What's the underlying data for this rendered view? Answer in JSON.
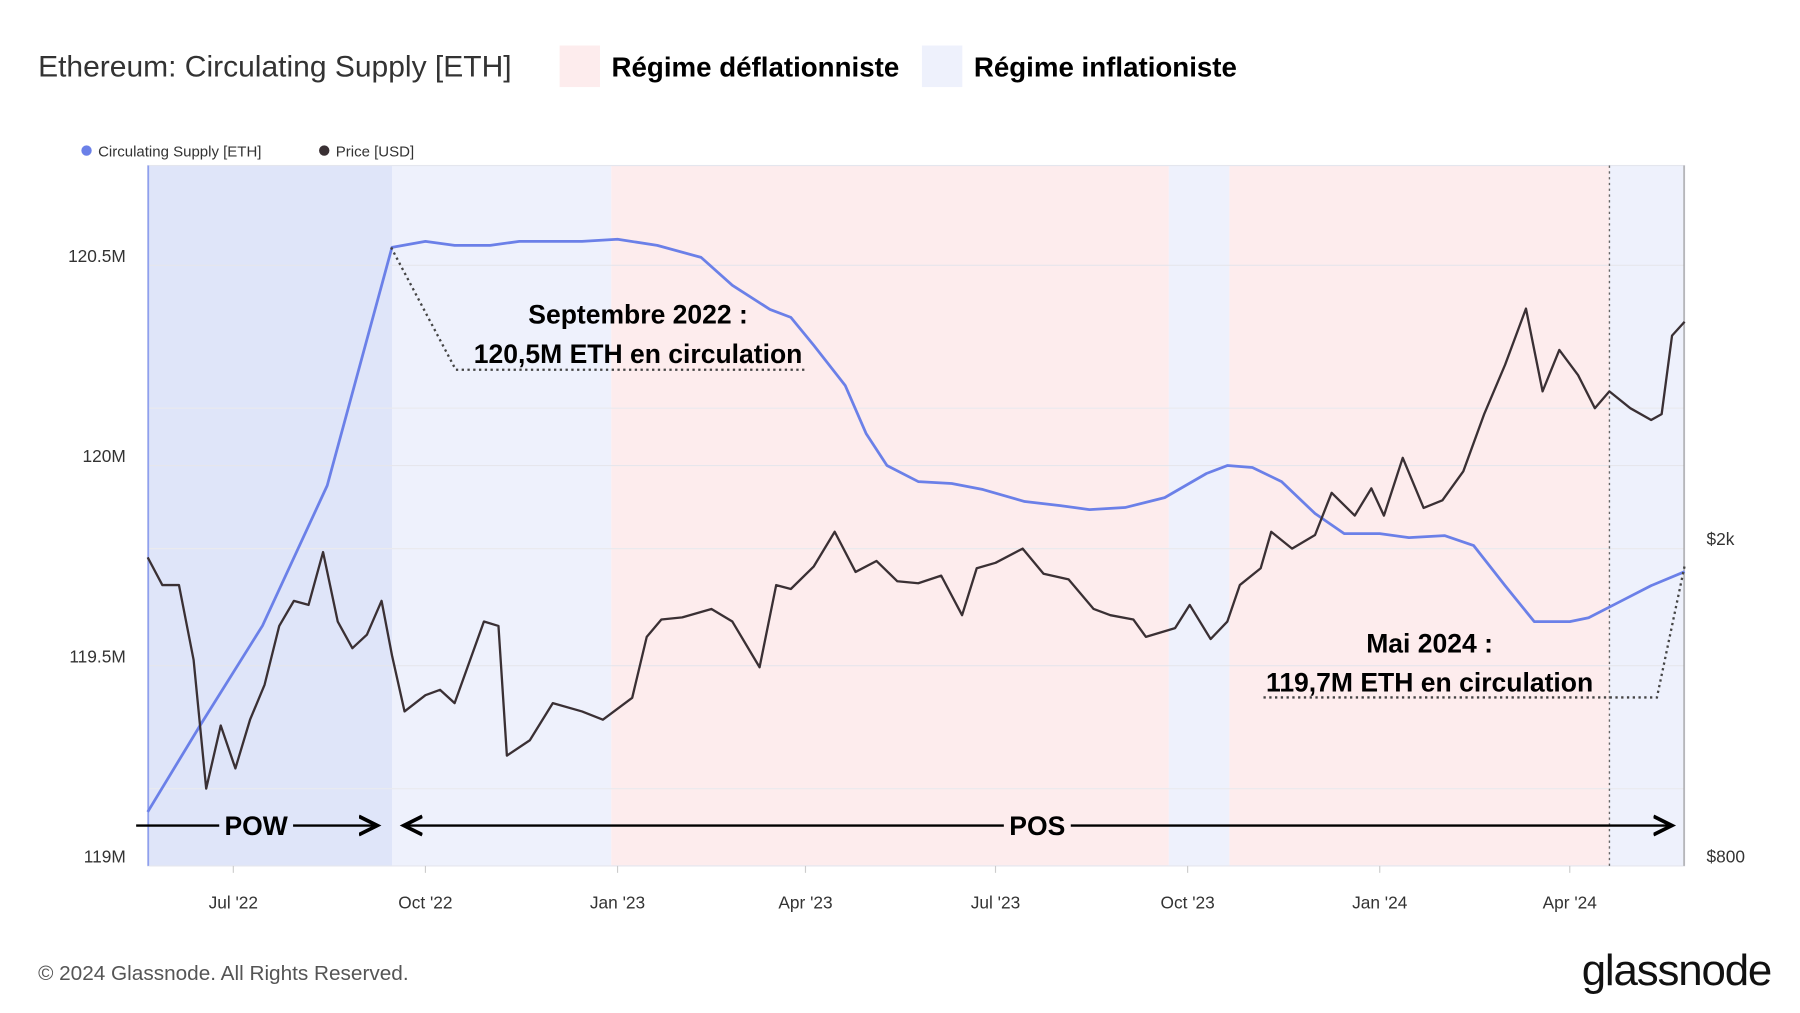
{
  "title": "Ethereum: Circulating Supply [ETH]",
  "regimes": [
    {
      "label": "Régime déflationniste",
      "color": "#fdeced"
    },
    {
      "label": "Régime inflationiste",
      "color": "#eef1fc"
    }
  ],
  "footer": {
    "copyright": "© 2024 Glassnode. All Rights Reserved.",
    "logo": "glassnode"
  },
  "chart_data": {
    "type": "line",
    "title": "Ethereum: Circulating Supply [ETH]",
    "legend": [
      "Circulating Supply [ETH]",
      "Price [USD]"
    ],
    "legend_placement": "top-left",
    "grid": true,
    "x_ticks": [
      "Jul '22",
      "Oct '22",
      "Jan '23",
      "Apr '23",
      "Jul '23",
      "Oct '23",
      "Jan '24",
      "Apr '24"
    ],
    "x_tick_dates": [
      "2022-07-01",
      "2022-10-01",
      "2023-01-01",
      "2023-04-01",
      "2023-07-01",
      "2023-10-01",
      "2024-01-01",
      "2024-04-01"
    ],
    "xlim": [
      "2022-05-21",
      "2024-05-26"
    ],
    "y_left": {
      "ticks": [
        "119M",
        "119.5M",
        "120M",
        "120.5M"
      ],
      "tick_values": [
        119.0,
        119.5,
        120.0,
        120.5
      ],
      "range": [
        119.0,
        120.7
      ],
      "unit": "M ETH"
    },
    "y_right": {
      "ticks": [
        "$800",
        "$2k"
      ],
      "tick_values": [
        800,
        2000
      ],
      "scale": "log"
    },
    "shaded_regions": [
      {
        "from": "2022-05-21",
        "to": "2022-09-15",
        "regime": "POW",
        "color": "#dfe5f9"
      },
      {
        "from": "2022-09-15",
        "to": "2022-12-29",
        "regime": "inflationiste",
        "color": "#eef1fc"
      },
      {
        "from": "2022-12-29",
        "to": "2023-09-22",
        "regime": "déflationniste",
        "color": "#fdeced"
      },
      {
        "from": "2023-09-22",
        "to": "2023-10-21",
        "regime": "inflationiste",
        "color": "#eef1fc"
      },
      {
        "from": "2023-10-21",
        "to": "2024-04-20",
        "regime": "déflationniste",
        "color": "#fdeced"
      },
      {
        "from": "2024-04-20",
        "to": "2024-05-26",
        "regime": "inflationiste",
        "color": "#eef1fc"
      }
    ],
    "series": [
      {
        "name": "Circulating Supply [ETH]",
        "color": "#6b80e8",
        "axis": "left",
        "points": [
          [
            "2022-05-21",
            119.135
          ],
          [
            "2022-06-15",
            119.35
          ],
          [
            "2022-07-15",
            119.6
          ],
          [
            "2022-08-15",
            119.95
          ],
          [
            "2022-09-15",
            120.545
          ],
          [
            "2022-10-01",
            120.56
          ],
          [
            "2022-10-15",
            120.55
          ],
          [
            "2022-11-01",
            120.55
          ],
          [
            "2022-11-15",
            120.56
          ],
          [
            "2022-12-15",
            120.56
          ],
          [
            "2023-01-01",
            120.565
          ],
          [
            "2023-01-20",
            120.55
          ],
          [
            "2023-02-10",
            120.52
          ],
          [
            "2023-02-25",
            120.45
          ],
          [
            "2023-03-15",
            120.39
          ],
          [
            "2023-03-25",
            120.37
          ],
          [
            "2023-04-05",
            120.3
          ],
          [
            "2023-04-20",
            120.2
          ],
          [
            "2023-04-30",
            120.08
          ],
          [
            "2023-05-10",
            120.0
          ],
          [
            "2023-05-25",
            119.96
          ],
          [
            "2023-06-10",
            119.955
          ],
          [
            "2023-06-25",
            119.94
          ],
          [
            "2023-07-15",
            119.91
          ],
          [
            "2023-08-01",
            119.9
          ],
          [
            "2023-08-15",
            119.89
          ],
          [
            "2023-09-01",
            119.895
          ],
          [
            "2023-09-20",
            119.92
          ],
          [
            "2023-10-10",
            119.98
          ],
          [
            "2023-10-20",
            120.0
          ],
          [
            "2023-11-01",
            119.995
          ],
          [
            "2023-11-15",
            119.96
          ],
          [
            "2023-12-01",
            119.88
          ],
          [
            "2023-12-15",
            119.83
          ],
          [
            "2024-01-01",
            119.83
          ],
          [
            "2024-01-15",
            119.82
          ],
          [
            "2024-02-01",
            119.825
          ],
          [
            "2024-02-15",
            119.8
          ],
          [
            "2024-03-01",
            119.7
          ],
          [
            "2024-03-15",
            119.61
          ],
          [
            "2024-04-01",
            119.61
          ],
          [
            "2024-04-10",
            119.62
          ],
          [
            "2024-04-25",
            119.66
          ],
          [
            "2024-05-10",
            119.7
          ],
          [
            "2024-05-26",
            119.735
          ]
        ]
      },
      {
        "name": "Price [USD]",
        "color": "#3a3034",
        "axis": "right",
        "points": [
          [
            "2022-05-21",
            1950
          ],
          [
            "2022-05-28",
            1800
          ],
          [
            "2022-06-05",
            1800
          ],
          [
            "2022-06-12",
            1450
          ],
          [
            "2022-06-18",
            1000
          ],
          [
            "2022-06-25",
            1200
          ],
          [
            "2022-07-02",
            1060
          ],
          [
            "2022-07-09",
            1220
          ],
          [
            "2022-07-16",
            1350
          ],
          [
            "2022-07-23",
            1600
          ],
          [
            "2022-07-30",
            1720
          ],
          [
            "2022-08-06",
            1700
          ],
          [
            "2022-08-13",
            1980
          ],
          [
            "2022-08-20",
            1620
          ],
          [
            "2022-08-27",
            1500
          ],
          [
            "2022-09-03",
            1560
          ],
          [
            "2022-09-10",
            1720
          ],
          [
            "2022-09-15",
            1470
          ],
          [
            "2022-09-21",
            1250
          ],
          [
            "2022-10-01",
            1310
          ],
          [
            "2022-10-08",
            1330
          ],
          [
            "2022-10-15",
            1280
          ],
          [
            "2022-10-29",
            1620
          ],
          [
            "2022-11-05",
            1600
          ],
          [
            "2022-11-09",
            1100
          ],
          [
            "2022-11-20",
            1150
          ],
          [
            "2022-12-01",
            1280
          ],
          [
            "2022-12-15",
            1250
          ],
          [
            "2022-12-25",
            1220
          ],
          [
            "2023-01-08",
            1300
          ],
          [
            "2023-01-15",
            1550
          ],
          [
            "2023-01-22",
            1630
          ],
          [
            "2023-02-01",
            1640
          ],
          [
            "2023-02-15",
            1680
          ],
          [
            "2023-02-25",
            1620
          ],
          [
            "2023-03-10",
            1420
          ],
          [
            "2023-03-18",
            1800
          ],
          [
            "2023-03-25",
            1780
          ],
          [
            "2023-04-05",
            1900
          ],
          [
            "2023-04-15",
            2100
          ],
          [
            "2023-04-25",
            1870
          ],
          [
            "2023-05-05",
            1930
          ],
          [
            "2023-05-15",
            1820
          ],
          [
            "2023-05-25",
            1810
          ],
          [
            "2023-06-05",
            1850
          ],
          [
            "2023-06-15",
            1650
          ],
          [
            "2023-06-22",
            1890
          ],
          [
            "2023-07-01",
            1920
          ],
          [
            "2023-07-14",
            2000
          ],
          [
            "2023-07-24",
            1860
          ],
          [
            "2023-08-05",
            1830
          ],
          [
            "2023-08-17",
            1680
          ],
          [
            "2023-08-25",
            1650
          ],
          [
            "2023-09-05",
            1630
          ],
          [
            "2023-09-11",
            1550
          ],
          [
            "2023-09-25",
            1590
          ],
          [
            "2023-10-02",
            1700
          ],
          [
            "2023-10-12",
            1540
          ],
          [
            "2023-10-20",
            1620
          ],
          [
            "2023-10-26",
            1800
          ],
          [
            "2023-11-05",
            1890
          ],
          [
            "2023-11-10",
            2100
          ],
          [
            "2023-11-20",
            2000
          ],
          [
            "2023-12-01",
            2080
          ],
          [
            "2023-12-09",
            2350
          ],
          [
            "2023-12-20",
            2200
          ],
          [
            "2023-12-28",
            2380
          ],
          [
            "2024-01-03",
            2200
          ],
          [
            "2024-01-12",
            2600
          ],
          [
            "2024-01-22",
            2250
          ],
          [
            "2024-01-31",
            2300
          ],
          [
            "2024-02-10",
            2500
          ],
          [
            "2024-02-20",
            2950
          ],
          [
            "2024-03-01",
            3400
          ],
          [
            "2024-03-11",
            4000
          ],
          [
            "2024-03-19",
            3150
          ],
          [
            "2024-03-27",
            3550
          ],
          [
            "2024-04-05",
            3300
          ],
          [
            "2024-04-13",
            3000
          ],
          [
            "2024-04-20",
            3150
          ],
          [
            "2024-04-30",
            3000
          ],
          [
            "2024-05-10",
            2900
          ],
          [
            "2024-05-15",
            2950
          ],
          [
            "2024-05-20",
            3700
          ],
          [
            "2024-05-26",
            3850
          ]
        ]
      }
    ],
    "annotations": [
      {
        "line1": "Septembre 2022 :",
        "line2": "120,5M ETH en circulation",
        "date": "2022-09-15",
        "value": 120.5
      },
      {
        "line1": "Mai 2024 :",
        "line2": "119,7M ETH en circulation",
        "date": "2024-05-26",
        "value": 119.7
      }
    ],
    "phases": [
      {
        "label": "POW",
        "from": "2022-05-21",
        "to": "2022-09-15"
      },
      {
        "label": "POS",
        "from": "2022-09-15",
        "to": "2024-05-26"
      }
    ]
  }
}
